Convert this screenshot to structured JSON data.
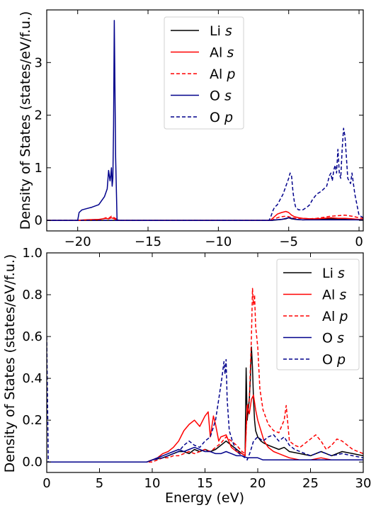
{
  "chart_data": [
    {
      "type": "line",
      "title": "",
      "xlabel": "",
      "ylabel": "Density of States (states/eV/f.u.)",
      "xlim": [
        -22.2,
        0.3
      ],
      "ylim": [
        -0.2,
        4.0
      ],
      "xticks": [
        -20,
        -15,
        -10,
        -5,
        0
      ],
      "xtick_labels": [
        "−20",
        "−15",
        "−10",
        "−5",
        "0"
      ],
      "yticks": [
        0,
        1,
        2,
        3
      ],
      "ytick_labels": [
        "0",
        "1",
        "2",
        "3"
      ],
      "grid": false,
      "legend_position": "top-center",
      "series": [
        {
          "name": "Li",
          "orbital": "s",
          "color": "#000000",
          "dash": "solid",
          "x": [
            -22.2,
            -6.2,
            -5.8,
            -5.5,
            -5.2,
            -5.0,
            -4.8,
            -4.5,
            -4.0,
            -3.0,
            -2.0,
            -1.0,
            0.0,
            0.3
          ],
          "y": [
            0,
            0,
            0.01,
            0.02,
            0.03,
            0.05,
            0.03,
            0.02,
            0.01,
            0.02,
            0.03,
            0.02,
            0.01,
            0.01
          ]
        },
        {
          "name": "Al",
          "orbital": "s",
          "color": "#ff0000",
          "dash": "solid",
          "x": [
            -22.2,
            -20.0,
            -19.5,
            -18.5,
            -18.0,
            -17.8,
            -17.6,
            -17.4,
            -17.1,
            -6.3,
            -6.1,
            -5.8,
            -5.5,
            -5.2,
            -5.0,
            -4.8,
            -4.6,
            -4.3,
            -4.0,
            -3.5,
            -3.0,
            -2.5,
            -2.0,
            -1.5,
            -1.0,
            -0.5,
            0.0,
            0.3
          ],
          "y": [
            0,
            0,
            0.01,
            0.02,
            0.04,
            0.03,
            0.05,
            0.03,
            0,
            0,
            0.05,
            0.12,
            0.15,
            0.17,
            0.15,
            0.1,
            0.07,
            0.05,
            0.04,
            0.03,
            0.03,
            0.04,
            0.05,
            0.04,
            0.04,
            0.03,
            0.02,
            0.02
          ]
        },
        {
          "name": "Al",
          "orbital": "p",
          "color": "#ff0000",
          "dash": "dashed",
          "x": [
            -22.2,
            -20.0,
            -19.0,
            -18.3,
            -18.0,
            -17.8,
            -17.6,
            -17.4,
            -17.1,
            -6.2,
            -6.0,
            -5.7,
            -5.5,
            -5.2,
            -5.0,
            -4.8,
            -4.5,
            -4.0,
            -3.5,
            -3.0,
            -2.5,
            -2.0,
            -1.5,
            -1.0,
            -0.5,
            0.0,
            0.3
          ],
          "y": [
            0,
            0,
            0.01,
            0.02,
            0.05,
            0.04,
            0.08,
            0.05,
            0,
            0,
            0.03,
            0.06,
            0.07,
            0.08,
            0.07,
            0.05,
            0.04,
            0.04,
            0.03,
            0.04,
            0.06,
            0.08,
            0.09,
            0.1,
            0.08,
            0.05,
            0.04
          ]
        },
        {
          "name": "O",
          "orbital": "s",
          "color": "#00008b",
          "dash": "solid",
          "x": [
            -22.2,
            -20.0,
            -19.9,
            -19.7,
            -19.0,
            -18.5,
            -18.1,
            -17.9,
            -17.8,
            -17.7,
            -17.65,
            -17.6,
            -17.55,
            -17.5,
            -17.45,
            -17.4,
            -17.3,
            -17.2,
            -17.0,
            -6.2,
            -6.0,
            -5.5,
            -5.0,
            -4.8,
            -4.5,
            -4.0,
            -3.0,
            -2.0,
            -1.0,
            0.0,
            0.3
          ],
          "y": [
            0,
            0,
            0.15,
            0.2,
            0.25,
            0.3,
            0.45,
            0.6,
            0.95,
            0.75,
            0.85,
            1.0,
            0.65,
            0.8,
            1.8,
            3.8,
            1.2,
            0.01,
            0,
            0,
            0.01,
            0.02,
            0.05,
            0.04,
            0.02,
            0.01,
            0.01,
            0.01,
            0.01,
            0.01,
            0.01
          ]
        },
        {
          "name": "O",
          "orbital": "p",
          "color": "#00008b",
          "dash": "dashed",
          "x": [
            -22.2,
            -6.4,
            -6.3,
            -6.1,
            -6.0,
            -5.8,
            -5.6,
            -5.4,
            -5.2,
            -5.0,
            -4.9,
            -4.8,
            -4.7,
            -4.6,
            -4.5,
            -4.3,
            -4.0,
            -3.7,
            -3.5,
            -3.3,
            -3.0,
            -2.7,
            -2.5,
            -2.3,
            -2.1,
            -2.0,
            -1.9,
            -1.8,
            -1.7,
            -1.6,
            -1.5,
            -1.4,
            -1.3,
            -1.2,
            -1.1,
            -1.0,
            -0.9,
            -0.8,
            -0.7,
            -0.6,
            -0.5,
            -0.3,
            0.0,
            0.3
          ],
          "y": [
            0,
            0,
            0.05,
            0.2,
            0.25,
            0.3,
            0.4,
            0.5,
            0.65,
            0.8,
            0.9,
            0.85,
            0.55,
            0.35,
            0.25,
            0.2,
            0.2,
            0.25,
            0.3,
            0.4,
            0.5,
            0.55,
            0.6,
            0.65,
            0.85,
            0.9,
            0.75,
            0.95,
            1.05,
            0.9,
            1.35,
            0.9,
            0.8,
            1.35,
            1.75,
            1.6,
            1.2,
            0.8,
            0.75,
            0.7,
            0.9,
            0.5,
            0.1,
            0.05
          ]
        }
      ],
      "legend_entries": [
        {
          "label": "Li",
          "orbital": "s",
          "color": "#000000",
          "dash": "solid"
        },
        {
          "label": "Al",
          "orbital": "s",
          "color": "#ff0000",
          "dash": "solid"
        },
        {
          "label": "Al",
          "orbital": "p",
          "color": "#ff0000",
          "dash": "dashed"
        },
        {
          "label": "O",
          "orbital": "s",
          "color": "#00008b",
          "dash": "solid"
        },
        {
          "label": "O",
          "orbital": "p",
          "color": "#00008b",
          "dash": "dashed"
        }
      ]
    },
    {
      "type": "line",
      "title": "",
      "xlabel": "Energy (eV)",
      "ylabel": "Density of States (states/eV/f.u.)",
      "xlim": [
        0,
        30
      ],
      "ylim": [
        -0.05,
        1.0
      ],
      "xticks": [
        0,
        5,
        10,
        15,
        20,
        25,
        30
      ],
      "xtick_labels": [
        "0",
        "5",
        "10",
        "15",
        "20",
        "25",
        "30"
      ],
      "yticks": [
        0,
        0.2,
        0.4,
        0.6,
        0.8,
        1.0
      ],
      "ytick_labels": [
        "0.0",
        "0.2",
        "0.4",
        "0.6",
        "0.8",
        "1.0"
      ],
      "grid": false,
      "legend_position": "top-right",
      "series": [
        {
          "name": "Li",
          "orbital": "s",
          "color": "#000000",
          "dash": "solid",
          "x": [
            0,
            9.5,
            10,
            11,
            12,
            12.5,
            13,
            13.5,
            14,
            14.5,
            15,
            15.5,
            16,
            16.5,
            17,
            17.5,
            18,
            18.5,
            18.8,
            18.9,
            19.0,
            19.1,
            19.2,
            19.3,
            19.4,
            19.5,
            19.6,
            19.7,
            19.8,
            20.0,
            20.3,
            20.6,
            21,
            21.5,
            22,
            22.5,
            23,
            24,
            25,
            26,
            26.5,
            27,
            28,
            29,
            30
          ],
          "y": [
            0,
            0,
            0.01,
            0.02,
            0.04,
            0.05,
            0.05,
            0.04,
            0.06,
            0.05,
            0.06,
            0.05,
            0.06,
            0.08,
            0.1,
            0.08,
            0.06,
            0.04,
            0.03,
            0.45,
            0.2,
            0.25,
            0.3,
            0.4,
            0.55,
            0.45,
            0.3,
            0.2,
            0.15,
            0.12,
            0.1,
            0.09,
            0.08,
            0.07,
            0.06,
            0.07,
            0.05,
            0.04,
            0.03,
            0.05,
            0.04,
            0.03,
            0.05,
            0.04,
            0.03
          ]
        },
        {
          "name": "Al",
          "orbital": "s",
          "color": "#ff0000",
          "dash": "solid",
          "x": [
            0,
            9.5,
            10,
            10.5,
            11,
            11.5,
            12,
            12.5,
            13,
            13.5,
            14,
            14.5,
            15,
            15.3,
            15.5,
            15.8,
            16,
            16.3,
            16.5,
            17,
            17.5,
            18,
            18.5,
            18.8,
            19.0,
            19.2,
            19.4,
            19.6,
            19.8,
            20,
            20.3,
            20.6,
            21,
            21.5,
            22,
            22.5,
            23,
            24,
            25,
            26,
            27,
            28,
            29,
            30
          ],
          "y": [
            0,
            0,
            0.01,
            0.02,
            0.04,
            0.05,
            0.07,
            0.1,
            0.15,
            0.18,
            0.2,
            0.17,
            0.22,
            0.24,
            0.12,
            0.22,
            0.18,
            0.1,
            0.12,
            0.13,
            0.07,
            0.05,
            0.04,
            0.03,
            0.27,
            0.23,
            0.3,
            0.32,
            0.25,
            0.2,
            0.15,
            0.1,
            0.07,
            0.05,
            0.04,
            0.03,
            0.02,
            0.01,
            0.01,
            0.02,
            0.01,
            0.01,
            0.01,
            0.01
          ]
        },
        {
          "name": "Al",
          "orbital": "p",
          "color": "#ff0000",
          "dash": "dashed",
          "x": [
            0,
            10,
            10.5,
            11,
            11.5,
            12,
            12.5,
            13,
            13.5,
            14,
            14.5,
            15,
            15.5,
            16,
            16.5,
            17,
            17.5,
            18,
            18.5,
            18.8,
            19.0,
            19.2,
            19.4,
            19.5,
            19.6,
            19.7,
            19.8,
            20.0,
            20.2,
            20.5,
            21,
            21.5,
            22,
            22.5,
            22.7,
            23,
            23.5,
            24,
            24.5,
            25,
            25.5,
            26,
            26.5,
            27,
            27.5,
            28,
            28.5,
            29,
            29.5,
            30
          ],
          "y": [
            0,
            0,
            0.01,
            0.02,
            0.02,
            0.03,
            0.03,
            0.04,
            0.05,
            0.04,
            0.05,
            0.06,
            0.05,
            0.07,
            0.09,
            0.12,
            0.1,
            0.08,
            0.05,
            0.04,
            0.25,
            0.3,
            0.6,
            0.83,
            0.75,
            0.8,
            0.65,
            0.55,
            0.35,
            0.25,
            0.18,
            0.15,
            0.14,
            0.2,
            0.27,
            0.1,
            0.08,
            0.07,
            0.09,
            0.11,
            0.13,
            0.1,
            0.06,
            0.08,
            0.11,
            0.1,
            0.08,
            0.06,
            0.05,
            0.04
          ]
        },
        {
          "name": "O",
          "orbital": "s",
          "color": "#00008b",
          "dash": "solid",
          "x": [
            0,
            9.5,
            10,
            11,
            11.5,
            12,
            12.5,
            13,
            13.5,
            14,
            14.5,
            15,
            15.5,
            16,
            16.5,
            17,
            17.5,
            18,
            18.5,
            19,
            19.5,
            20,
            20.5,
            21,
            22,
            23,
            24,
            25,
            26,
            27,
            28,
            29,
            30
          ],
          "y": [
            0,
            0,
            0.01,
            0.03,
            0.04,
            0.05,
            0.06,
            0.05,
            0.06,
            0.07,
            0.06,
            0.05,
            0.05,
            0.04,
            0.04,
            0.05,
            0.04,
            0.03,
            0.03,
            0.02,
            0.02,
            0.02,
            0.01,
            0.01,
            0.01,
            0.01,
            0.01,
            0.01,
            0.01,
            0.01,
            0.01,
            0.01,
            0.01
          ]
        },
        {
          "name": "O",
          "orbital": "p",
          "color": "#00008b",
          "dash": "dashed",
          "x": [
            0,
            0.15,
            0.3,
            9.5,
            10,
            11,
            11.5,
            12,
            12.5,
            13,
            13.5,
            14,
            14.5,
            15,
            15.5,
            16,
            16.3,
            16.6,
            16.8,
            16.9,
            17.0,
            17.1,
            17.3,
            17.6,
            18,
            18.5,
            18.8,
            19.0,
            19.3,
            19.6,
            20,
            20.5,
            21,
            21.5,
            22,
            22.5,
            23,
            23.5,
            24,
            25,
            26,
            26.5,
            27,
            28,
            29,
            30
          ],
          "y": [
            0.6,
            0,
            0,
            0,
            0.01,
            0.02,
            0.03,
            0.04,
            0.05,
            0.08,
            0.1,
            0.08,
            0.07,
            0.1,
            0.12,
            0.2,
            0.3,
            0.4,
            0.48,
            0.42,
            0.49,
            0.3,
            0.15,
            0.1,
            0.05,
            0.03,
            0.02,
            0.01,
            0.05,
            0.1,
            0.12,
            0.1,
            0.12,
            0.13,
            0.1,
            0.12,
            0.08,
            0.06,
            0.05,
            0.03,
            0.05,
            0.04,
            0.03,
            0.04,
            0.03,
            0.02
          ]
        }
      ],
      "legend_entries": [
        {
          "label": "Li",
          "orbital": "s",
          "color": "#000000",
          "dash": "solid"
        },
        {
          "label": "Al",
          "orbital": "s",
          "color": "#ff0000",
          "dash": "solid"
        },
        {
          "label": "Al",
          "orbital": "p",
          "color": "#ff0000",
          "dash": "dashed"
        },
        {
          "label": "O",
          "orbital": "s",
          "color": "#00008b",
          "dash": "solid"
        },
        {
          "label": "O",
          "orbital": "p",
          "color": "#00008b",
          "dash": "dashed"
        }
      ]
    }
  ]
}
